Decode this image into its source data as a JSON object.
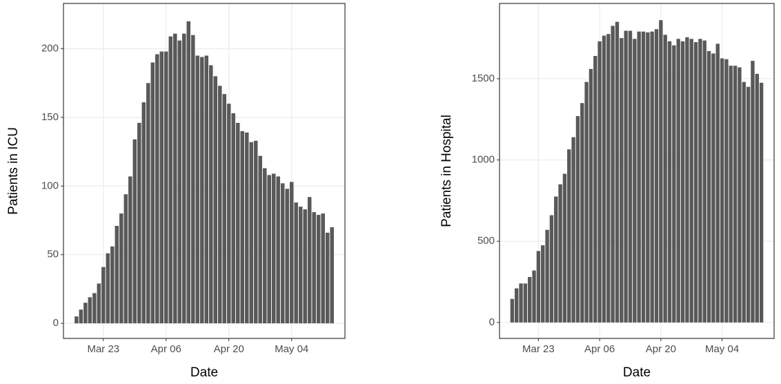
{
  "chart_data": [
    {
      "type": "bar",
      "x_label": "Date",
      "y_label": "Patients in ICU",
      "color": "#595959",
      "grid": true,
      "categories": [
        null,
        null,
        null,
        null,
        null,
        null,
        "Mar 23",
        null,
        null,
        null,
        null,
        null,
        null,
        null,
        null,
        null,
        null,
        null,
        null,
        null,
        "Apr 06",
        null,
        null,
        null,
        null,
        null,
        null,
        null,
        null,
        null,
        null,
        null,
        null,
        null,
        "Apr 20",
        null,
        null,
        null,
        null,
        null,
        null,
        null,
        null,
        null,
        null,
        null,
        null,
        null,
        "May 04",
        null,
        null,
        null,
        null,
        null,
        null,
        null,
        null,
        null
      ],
      "values": [
        5,
        10,
        15,
        19,
        22,
        29,
        41,
        51,
        56,
        71,
        80,
        94,
        107,
        134,
        146,
        161,
        175,
        190,
        196,
        198,
        198,
        209,
        211,
        206,
        211,
        220,
        210,
        195,
        194,
        195,
        188,
        180,
        173,
        167,
        160,
        153,
        146,
        140,
        139,
        132,
        133,
        122,
        113,
        108,
        109,
        107,
        102,
        98,
        103,
        88,
        85,
        83,
        92,
        81,
        79,
        80,
        66,
        70
      ],
      "ylim": [
        -11,
        233
      ],
      "yticks": [
        0,
        50,
        100,
        150,
        200
      ]
    },
    {
      "type": "bar",
      "x_label": "Date",
      "y_label": "Patients in Hospital",
      "color": "#595959",
      "grid": true,
      "categories": [
        null,
        null,
        null,
        null,
        null,
        null,
        "Mar 23",
        null,
        null,
        null,
        null,
        null,
        null,
        null,
        null,
        null,
        null,
        null,
        null,
        null,
        "Apr 06",
        null,
        null,
        null,
        null,
        null,
        null,
        null,
        null,
        null,
        null,
        null,
        null,
        null,
        "Apr 20",
        null,
        null,
        null,
        null,
        null,
        null,
        null,
        null,
        null,
        null,
        null,
        null,
        null,
        "May 04",
        null,
        null,
        null,
        null,
        null,
        null,
        null,
        null,
        null
      ],
      "values": [
        145,
        210,
        240,
        240,
        280,
        320,
        440,
        475,
        570,
        660,
        775,
        850,
        915,
        1065,
        1140,
        1270,
        1350,
        1480,
        1560,
        1640,
        1730,
        1765,
        1775,
        1825,
        1850,
        1750,
        1795,
        1795,
        1745,
        1790,
        1790,
        1785,
        1790,
        1805,
        1860,
        1770,
        1730,
        1705,
        1745,
        1730,
        1755,
        1745,
        1725,
        1745,
        1735,
        1670,
        1655,
        1715,
        1625,
        1620,
        1580,
        1580,
        1570,
        1480,
        1450,
        1610,
        1530,
        1475
      ],
      "ylim": [
        -98,
        1963
      ],
      "yticks": [
        0,
        500,
        1000,
        1500
      ]
    }
  ]
}
